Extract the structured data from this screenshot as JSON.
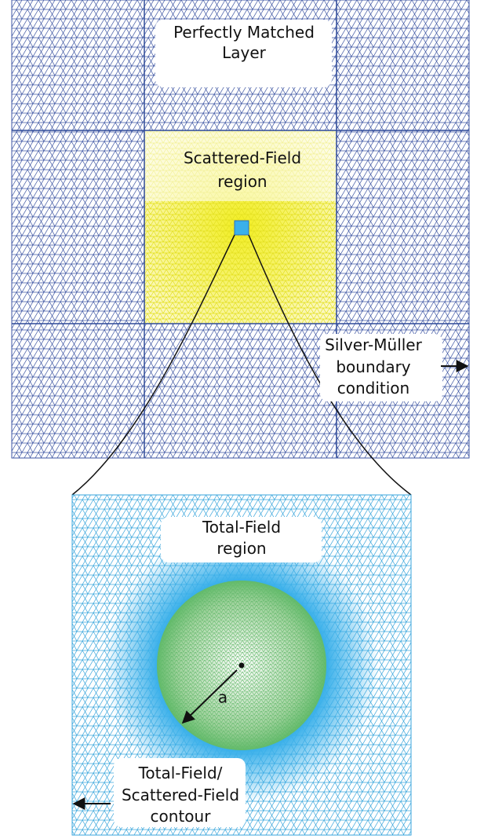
{
  "labels": {
    "pml": [
      "Perfectly Matched",
      "Layer"
    ],
    "scattered_field": [
      "Scattered-Field",
      "region"
    ],
    "silver_muller": [
      "Silver-Müller",
      "boundary",
      "condition"
    ],
    "total_field": [
      "Total-Field",
      "region"
    ],
    "radius": "a",
    "contour": [
      "Total-Field/",
      "Scattered-Field",
      "contour"
    ]
  }
}
